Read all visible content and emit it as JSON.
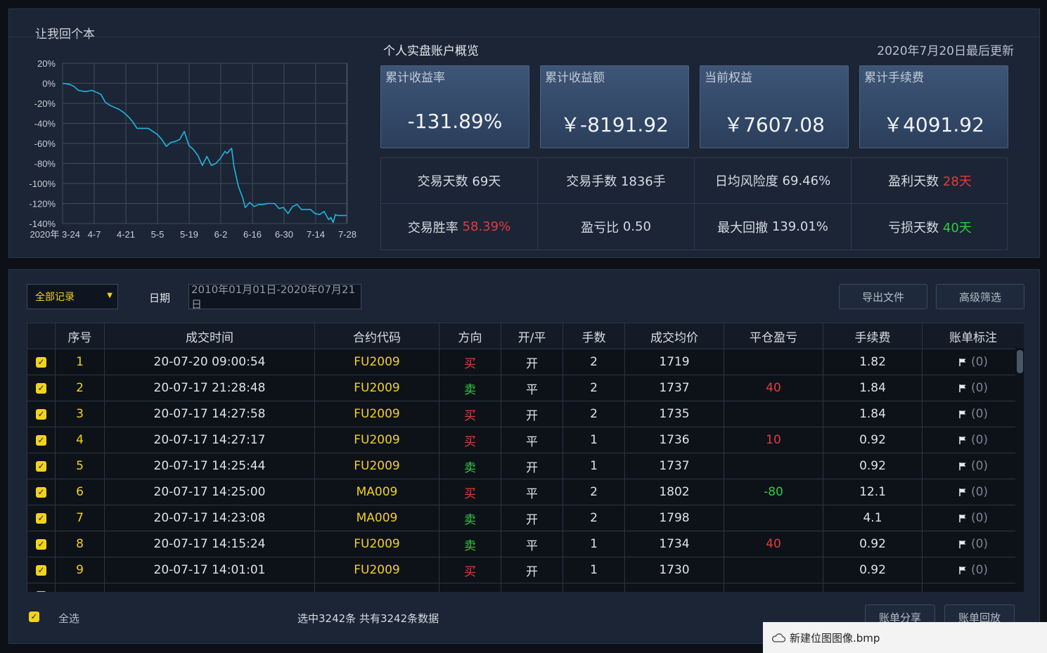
{
  "app": {
    "title": "让我回个本"
  },
  "overview": {
    "title": "个人实盘账户概览",
    "updated": "2020年7月20日最后更新",
    "cards": [
      {
        "label": "累计收益率",
        "value": "-131.89%"
      },
      {
        "label": "累计收益额",
        "value": "￥-8191.92"
      },
      {
        "label": "当前权益",
        "value": "￥7607.08"
      },
      {
        "label": "累计手续费",
        "value": "￥4091.92"
      }
    ],
    "stats": [
      {
        "label": "交易天数",
        "value": "69天",
        "color": ""
      },
      {
        "label": "交易手数",
        "value": "1836手",
        "color": ""
      },
      {
        "label": "日均风险度",
        "value": "69.46%",
        "color": ""
      },
      {
        "label": "盈利天数",
        "value": "28天",
        "color": "#e23c3c"
      },
      {
        "label": "交易胜率",
        "value": "58.39%",
        "color": "#e23c3c"
      },
      {
        "label": "盈亏比",
        "value": "0.50",
        "color": ""
      },
      {
        "label": "最大回撤",
        "value": "139.01%",
        "color": ""
      },
      {
        "label": "亏损天数",
        "value": "40天",
        "color": "#2ecc40"
      }
    ]
  },
  "chart_data": {
    "type": "line",
    "title": "",
    "xlabel": "",
    "ylabel": "",
    "x_ticks": [
      "2020年 3-24",
      "4-7",
      "4-21",
      "5-5",
      "5-19",
      "6-2",
      "6-16",
      "6-30",
      "7-14",
      "7-28"
    ],
    "y_ticks": [
      "20%",
      "0%",
      "-20%",
      "-40%",
      "-60%",
      "-80%",
      "-100%",
      "-120%",
      "-140%"
    ],
    "ylim": [
      -140,
      20
    ],
    "xlim": [
      0,
      126
    ],
    "x_unit": "days since 2020-03-24",
    "grid": true,
    "series": [
      {
        "name": "",
        "color": "#1fb6e0",
        "x": [
          0,
          3,
          5,
          7,
          9,
          11,
          13,
          15,
          17,
          19,
          21,
          23,
          25,
          27,
          29,
          31,
          33,
          35,
          37,
          38,
          40,
          42,
          44,
          46,
          48,
          50,
          52,
          54,
          56,
          58,
          60,
          62,
          64,
          66,
          68,
          70,
          72,
          73,
          74,
          75,
          76,
          78,
          80,
          81,
          83,
          85,
          87,
          89,
          91,
          92,
          94,
          96,
          98,
          100,
          102,
          104,
          106,
          108,
          110,
          112,
          114,
          116,
          118,
          119,
          120,
          121,
          122,
          124,
          126
        ],
        "y": [
          0,
          -1,
          -3,
          -7,
          -8,
          -8,
          -7,
          -9,
          -11,
          -19,
          -22,
          -24,
          -26,
          -29,
          -33,
          -38,
          -45,
          -45,
          -45,
          -45,
          -48,
          -51,
          -56,
          -63,
          -59,
          -58,
          -56,
          -48,
          -62,
          -66,
          -72,
          -82,
          -73,
          -82,
          -80,
          -75,
          -68,
          -70,
          -67,
          -65,
          -83,
          -103,
          -115,
          -124,
          -119,
          -123,
          -121,
          -121,
          -120,
          -120,
          -120,
          -125,
          -124,
          -130,
          -123,
          -121,
          -126,
          -126,
          -126,
          -130,
          -131,
          -128,
          -136,
          -134,
          -139,
          -131,
          -132,
          -132,
          -132
        ]
      }
    ]
  },
  "toolbar": {
    "record_filter": "全部记录",
    "date_label": "日期",
    "date_range": "2010年01月01日-2020年07月21日",
    "export_label": "导出文件",
    "advanced_label": "高级筛选"
  },
  "table": {
    "headers": [
      "",
      "序号",
      "成交时间",
      "合约代码",
      "方向",
      "开/平",
      "手数",
      "成交均价",
      "平仓盈亏",
      "手续费",
      "账单标注"
    ],
    "rows": [
      {
        "no": "1",
        "time": "20-07-20 09:00:54",
        "code": "FU2009",
        "dir": "买",
        "oc": "开",
        "lots": "2",
        "price": "1719",
        "pnl": "",
        "fee": "1.82",
        "note": "(0)"
      },
      {
        "no": "2",
        "time": "20-07-17 21:28:48",
        "code": "FU2009",
        "dir": "卖",
        "oc": "平",
        "lots": "2",
        "price": "1737",
        "pnl": "40",
        "fee": "1.84",
        "note": "(0)"
      },
      {
        "no": "3",
        "time": "20-07-17 14:27:58",
        "code": "FU2009",
        "dir": "买",
        "oc": "开",
        "lots": "2",
        "price": "1735",
        "pnl": "",
        "fee": "1.84",
        "note": "(0)"
      },
      {
        "no": "4",
        "time": "20-07-17 14:27:17",
        "code": "FU2009",
        "dir": "买",
        "oc": "平",
        "lots": "1",
        "price": "1736",
        "pnl": "10",
        "fee": "0.92",
        "note": "(0)"
      },
      {
        "no": "5",
        "time": "20-07-17 14:25:44",
        "code": "FU2009",
        "dir": "卖",
        "oc": "开",
        "lots": "1",
        "price": "1737",
        "pnl": "",
        "fee": "0.92",
        "note": "(0)"
      },
      {
        "no": "6",
        "time": "20-07-17 14:25:00",
        "code": "MA009",
        "dir": "买",
        "oc": "平",
        "lots": "2",
        "price": "1802",
        "pnl": "-80",
        "fee": "12.1",
        "note": "(0)"
      },
      {
        "no": "7",
        "time": "20-07-17 14:23:08",
        "code": "MA009",
        "dir": "卖",
        "oc": "开",
        "lots": "2",
        "price": "1798",
        "pnl": "",
        "fee": "4.1",
        "note": "(0)"
      },
      {
        "no": "8",
        "time": "20-07-17 14:15:24",
        "code": "FU2009",
        "dir": "卖",
        "oc": "平",
        "lots": "1",
        "price": "1734",
        "pnl": "40",
        "fee": "0.92",
        "note": "(0)"
      },
      {
        "no": "9",
        "time": "20-07-17 14:01:01",
        "code": "FU2009",
        "dir": "买",
        "oc": "开",
        "lots": "1",
        "price": "1730",
        "pnl": "",
        "fee": "0.92",
        "note": "(0)"
      }
    ]
  },
  "footer": {
    "select_all": "全选",
    "info": "选中3242条 共有3242条数据",
    "share_label": "账单分享",
    "replay_label": "账单回放"
  },
  "notification": {
    "text": "新建位图图像.bmp"
  },
  "colors": {
    "buy": "#e23c3c",
    "sell": "#2ecc40",
    "code": "#f2d21e",
    "profit": "#e23c3c",
    "loss": "#2ecc40",
    "accent": "#f2d21e"
  }
}
